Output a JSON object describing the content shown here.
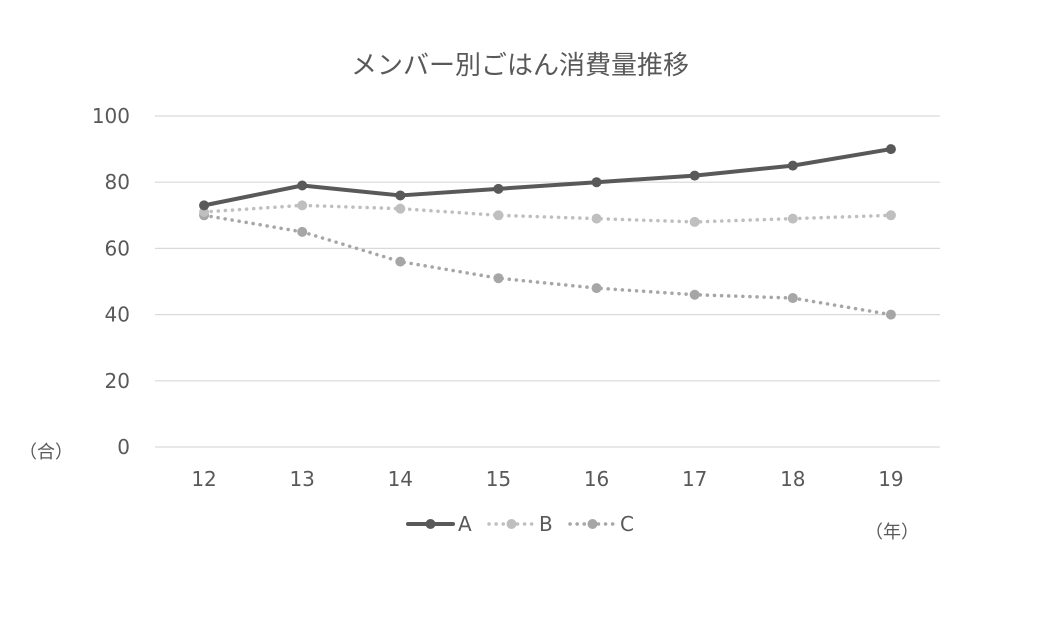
{
  "chart_data": {
    "type": "line",
    "title": "メンバー別ごはん消費量推移",
    "y_unit": "（合）",
    "x_unit": "（年）",
    "categories": [
      "12",
      "13",
      "14",
      "15",
      "16",
      "17",
      "18",
      "19"
    ],
    "y_ticks": [
      "0",
      "20",
      "40",
      "60",
      "80",
      "100"
    ],
    "ylim": [
      0,
      100
    ],
    "grid": "horizontal",
    "legend_position": "bottom",
    "series": [
      {
        "name": "A",
        "values": [
          73,
          79,
          76,
          78,
          80,
          82,
          85,
          90
        ],
        "color": "#595959",
        "style": "solid"
      },
      {
        "name": "B",
        "values": [
          71,
          73,
          72,
          70,
          69,
          68,
          69,
          70
        ],
        "color": "#bfbfbf",
        "style": "dotted"
      },
      {
        "name": "C",
        "values": [
          70,
          65,
          56,
          51,
          48,
          46,
          45,
          40
        ],
        "color": "#a6a6a6",
        "style": "dotted"
      }
    ]
  }
}
